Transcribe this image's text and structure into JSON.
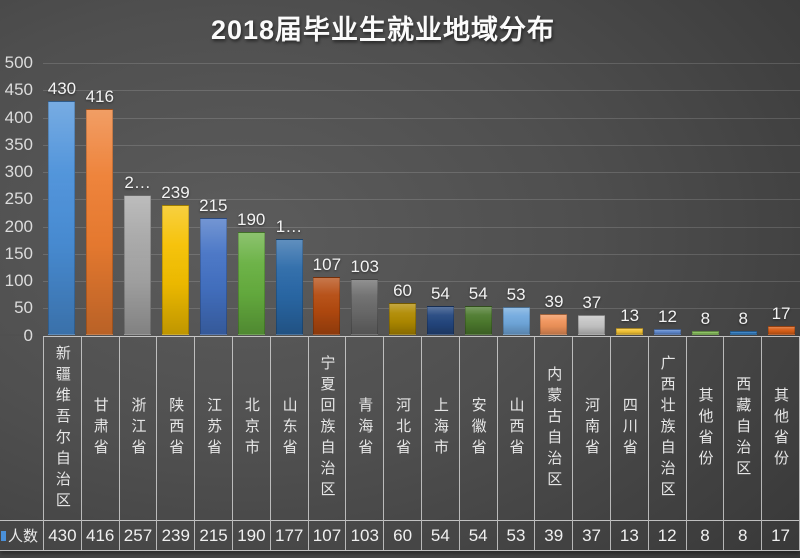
{
  "title": "2018届毕业生就业地域分布",
  "series": {
    "name": "人数",
    "key_color": "#4A90D9"
  },
  "chart_data": {
    "type": "bar",
    "title": "2018届毕业生就业地域分布",
    "xlabel": "",
    "ylabel": "",
    "ylim": [
      0,
      500
    ],
    "yticks": [
      0,
      50,
      100,
      150,
      200,
      250,
      300,
      350,
      400,
      450,
      500
    ],
    "grid": true,
    "legend_position": "data-table-left",
    "background": "dark-gray-gradient",
    "categories": [
      "新疆维吾尔自治区",
      "甘肃省",
      "浙江省",
      "陕西省",
      "江苏省",
      "北京市",
      "山东省",
      "宁夏回族自治区",
      "青海省",
      "河北省",
      "上海市",
      "安徽省",
      "山西省",
      "内蒙古自治区",
      "河南省",
      "四川省",
      "广西壮族自治区",
      "其他省份",
      "西藏自治区",
      "其他省份"
    ],
    "series": [
      {
        "name": "人数",
        "values": [
          430,
          416,
          257,
          239,
          215,
          190,
          177,
          107,
          103,
          60,
          54,
          54,
          53,
          39,
          37,
          13,
          12,
          8,
          8,
          17
        ]
      }
    ],
    "bar_display_labels": [
      "430",
      "416",
      "2…",
      "239",
      "215",
      "190",
      "1…",
      "107",
      "103",
      "60",
      "54",
      "54",
      "53",
      "39",
      "37",
      "13",
      "12",
      "8",
      "8",
      "17"
    ],
    "bar_colors": [
      "#4A90D9",
      "#ED7D31",
      "#A6A6A6",
      "#F5C000",
      "#4472C4",
      "#66AF3F",
      "#2A69A8",
      "#B44A0F",
      "#6B6B6B",
      "#B08A00",
      "#24477F",
      "#4C7A2D",
      "#71A9DE",
      "#F0935A",
      "#C4C4C4",
      "#F2C233",
      "#5E87CC",
      "#83BB57",
      "#2F79BD",
      "#D95F18"
    ]
  },
  "layout_colors": {
    "gridline": "rgba(255,255,255,0.14)",
    "axis_text": "#dcdcdc",
    "table_border": "rgba(235,235,235,0.75)",
    "label_text": "#e6e6e6"
  }
}
